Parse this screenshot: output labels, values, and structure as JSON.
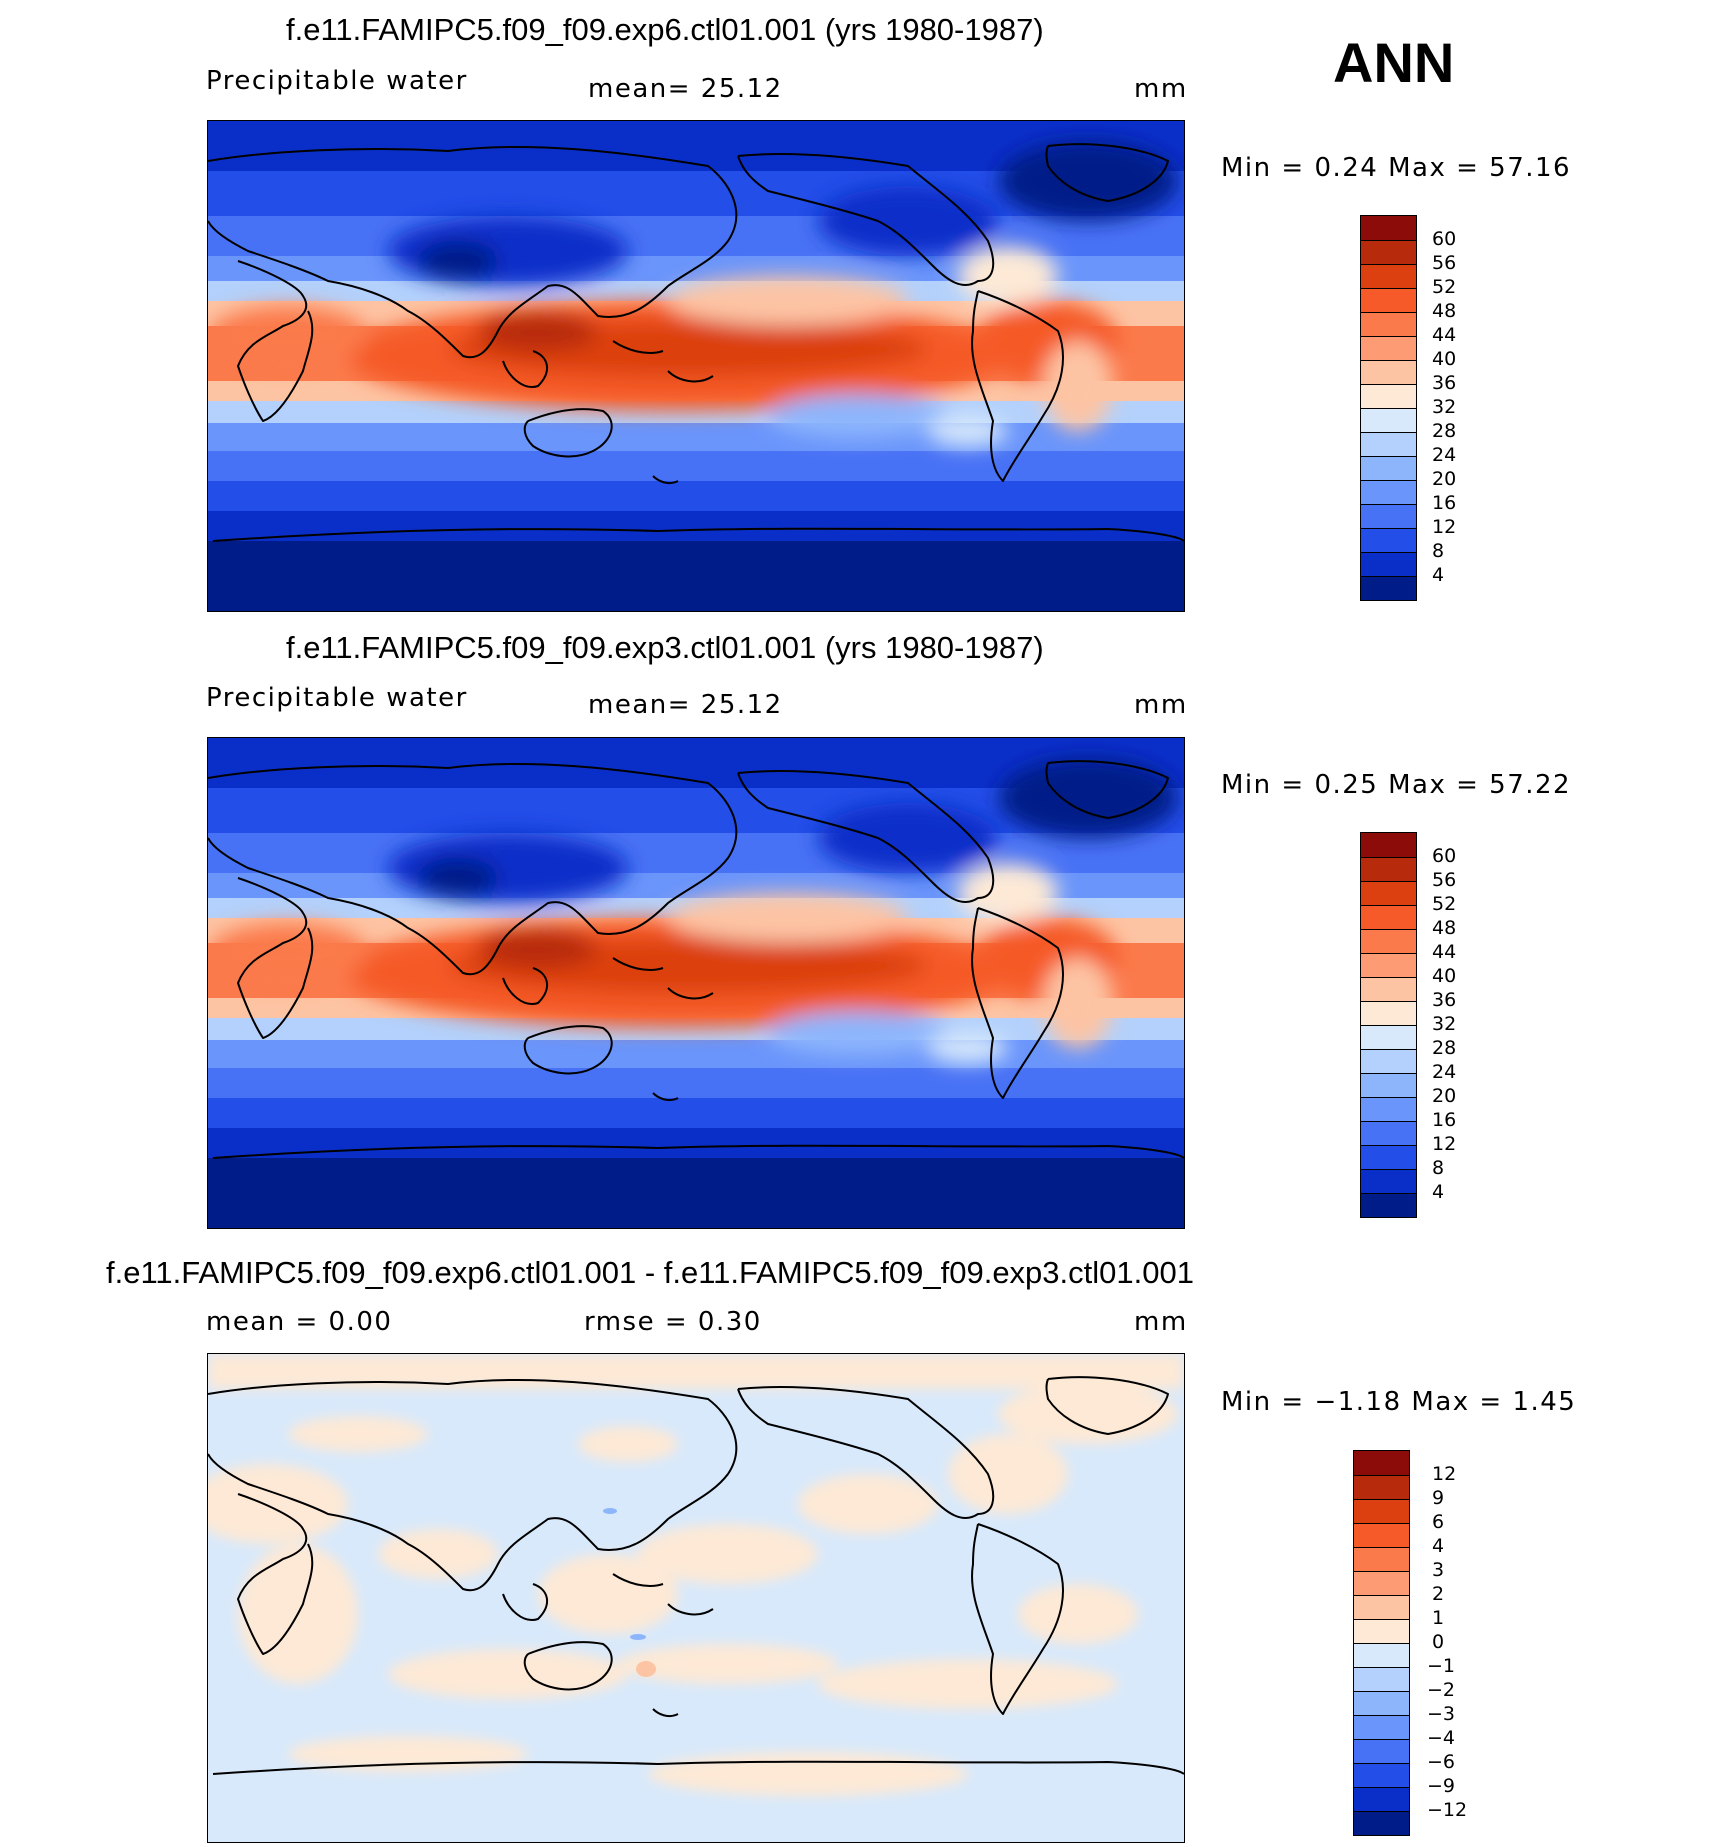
{
  "season": "ANN",
  "panels": [
    {
      "title": "f.e11.FAMIPC5.f09_f09.exp6.ctl01.001 (yrs 1980-1987)",
      "left_text": "Precipitable water",
      "center_text": "mean=   25.12",
      "units": "mm",
      "minmax": "Min =    0.24  Max =   57.16",
      "colorbar_labels": [
        "60",
        "56",
        "52",
        "48",
        "44",
        "40",
        "36",
        "32",
        "28",
        "24",
        "20",
        "16",
        "12",
        "8",
        "4"
      ]
    },
    {
      "title": "f.e11.FAMIPC5.f09_f09.exp3.ctl01.001 (yrs 1980-1987)",
      "left_text": "Precipitable water",
      "center_text": "mean=   25.12",
      "units": "mm",
      "minmax": "Min =    0.25  Max =   57.22",
      "colorbar_labels": [
        "60",
        "56",
        "52",
        "48",
        "44",
        "40",
        "36",
        "32",
        "28",
        "24",
        "20",
        "16",
        "12",
        "8",
        "4"
      ]
    },
    {
      "title": "f.e11.FAMIPC5.f09_f09.exp6.ctl01.001 - f.e11.FAMIPC5.f09_f09.exp3.ctl01.001",
      "left_text": "mean =    0.00",
      "center_text": "rmse =    0.30",
      "units": "mm",
      "minmax": "Min =  −1.18  Max =    1.45",
      "colorbar_labels": [
        "12",
        "9",
        "6",
        "4",
        "3",
        "2",
        "1",
        "0",
        "−1",
        "−2",
        "−3",
        "−4",
        "−6",
        "−9",
        "−12"
      ]
    }
  ],
  "colors": {
    "scale_16": [
      "#8c0c0a",
      "#b82a0c",
      "#dc3f10",
      "#f55a28",
      "#fb7a4c",
      "#fd9b74",
      "#fdc4a4",
      "#fde9d6",
      "#d8e9fb",
      "#b3d1fc",
      "#8db5fc",
      "#6a95fb",
      "#4872f5",
      "#234ee8",
      "#0a2fc9",
      "#001c88"
    ],
    "ocean_deep": "#001c88",
    "diff_pos": "#fde9d6",
    "diff_neg": "#d8e9fb"
  }
}
